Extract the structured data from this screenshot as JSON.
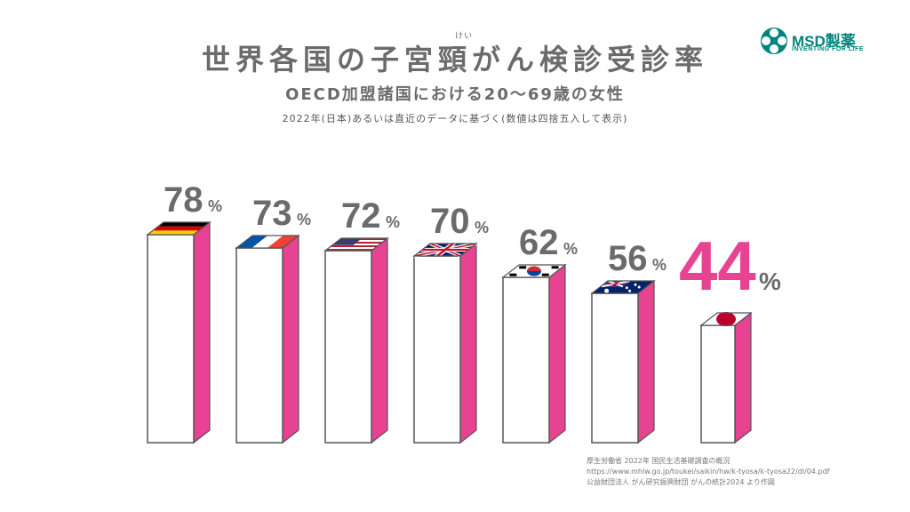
{
  "header": {
    "title": "世界各国の子宮頸がん検診受診率",
    "ruby": "けい",
    "subtitle": "OECD加盟諸国における20～69歳の女性",
    "note": "2022年(日本)あるいは直近のデータに基づく(数値は四捨五入して表示)"
  },
  "logo": {
    "name": "MSD製薬",
    "tagline": "INVENTING FOR LIFE",
    "color": "#00857c"
  },
  "chart_data": {
    "type": "bar",
    "categories": [
      "Germany",
      "France",
      "USA",
      "UK",
      "South Korea",
      "Australia",
      "Japan"
    ],
    "values": [
      78,
      73,
      72,
      70,
      62,
      56,
      44
    ],
    "unit": "%",
    "highlight": "Japan",
    "colors": {
      "bar_side": "#e84393",
      "highlight_label": "#e84393",
      "label": "#6b6b6b"
    }
  },
  "source": {
    "lines": [
      "厚生労働省 2022年 国民生活基礎調査の概況",
      "https://www.mhlw.go.jp/toukei/saikin/hw/k-tyosa/k-tyosa22/dl/04.pdf",
      "公益財団法人 がん研究振興財団 がんの統計2024 より作図"
    ]
  }
}
